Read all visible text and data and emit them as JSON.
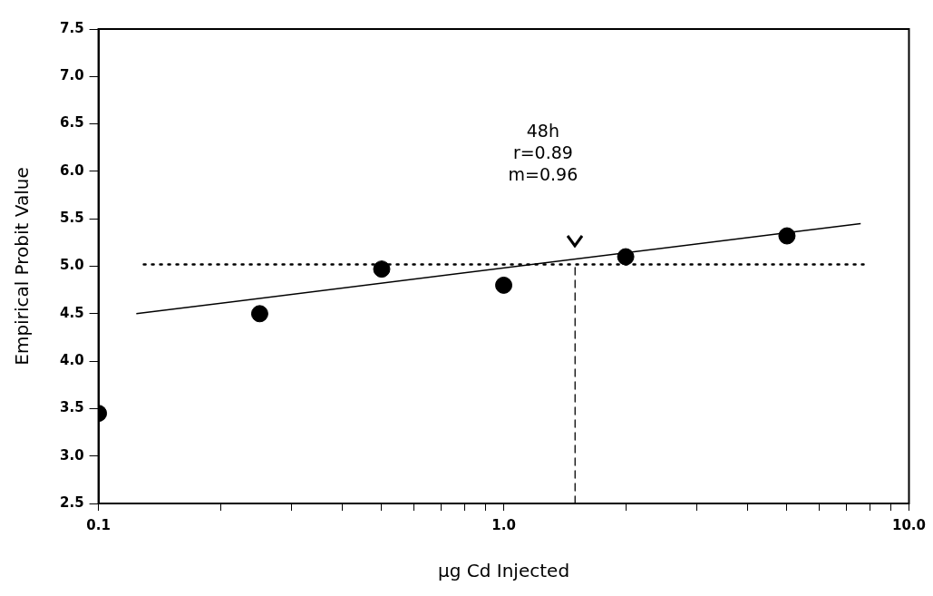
{
  "chart_data": {
    "type": "scatter",
    "xlabel": "μg Cd Injected",
    "ylabel": "Empirical Probit Value",
    "annotations": [
      "48h",
      "r=0.89",
      "m=0.96"
    ],
    "log": "x",
    "grid": false,
    "legend": false,
    "marker": "circle",
    "xlim": [
      0.1,
      10
    ],
    "ylim": [
      2.5,
      7.5
    ],
    "xticks": [
      {
        "value": 0.1,
        "label": "0.1"
      },
      {
        "value": 0.2,
        "label": null
      },
      {
        "value": 0.3,
        "label": null
      },
      {
        "value": 0.4,
        "label": null
      },
      {
        "value": 0.5,
        "label": null
      },
      {
        "value": 0.6,
        "label": null
      },
      {
        "value": 0.7,
        "label": null
      },
      {
        "value": 0.8,
        "label": null
      },
      {
        "value": 0.9,
        "label": null
      },
      {
        "value": 1,
        "label": "1.0"
      },
      {
        "value": 2,
        "label": null
      },
      {
        "value": 3,
        "label": null
      },
      {
        "value": 4,
        "label": null
      },
      {
        "value": 5,
        "label": null
      },
      {
        "value": 6,
        "label": null
      },
      {
        "value": 7,
        "label": null
      },
      {
        "value": 8,
        "label": null
      },
      {
        "value": 9,
        "label": null
      },
      {
        "value": 10,
        "label": "10.0"
      }
    ],
    "yticks": [
      {
        "value": 2.5,
        "label": "2.5"
      },
      {
        "value": 3,
        "label": "3.0"
      },
      {
        "value": 3.5,
        "label": "3.5"
      },
      {
        "value": 4,
        "label": "4.0"
      },
      {
        "value": 4.5,
        "label": "4.5"
      },
      {
        "value": 5,
        "label": "5.0"
      },
      {
        "value": 5.5,
        "label": "5.5"
      },
      {
        "value": 6,
        "label": "6.0"
      },
      {
        "value": 6.5,
        "label": "6.5"
      },
      {
        "value": 7,
        "label": "7.0"
      },
      {
        "value": 7.5,
        "label": "7.5"
      }
    ],
    "ref_lines": [
      {
        "axis": "y",
        "value": 5.02,
        "line_style": "dotted",
        "color": "#000000"
      },
      {
        "axis": "x",
        "value": 1.5,
        "line_style": "dashed",
        "color": "#000000"
      }
    ],
    "series": [
      {
        "color": "#000000",
        "x": [
          0.1,
          0.25,
          0.5,
          1.0,
          2.0,
          5.0
        ],
        "values": [
          3.45,
          4.5,
          4.97,
          4.8,
          5.1,
          5.32
        ]
      },
      {
        "type": "line",
        "color": "#000000",
        "marker": "none",
        "line_style": "solid",
        "x": [
          0.124,
          7.6
        ],
        "values": [
          4.5,
          5.45
        ]
      }
    ]
  }
}
